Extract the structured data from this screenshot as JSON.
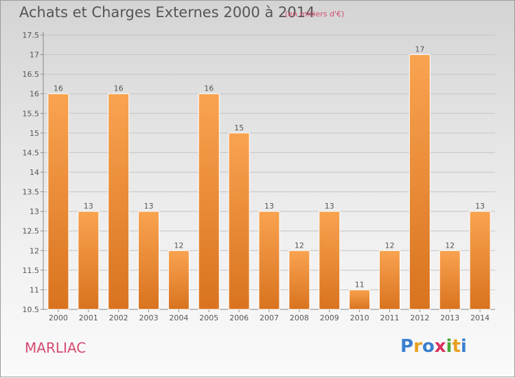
{
  "title": "Achats et Charges Externes 2000 à 2014",
  "subtitle": "(en milliers d'€)",
  "commune": "MARLIAC",
  "logo": {
    "text": "Proxiti",
    "letters": [
      "P",
      "r",
      "o",
      "x",
      "i",
      "t",
      "i"
    ],
    "colors": [
      "#3a7fd0",
      "#e8a020",
      "#3a7fd0",
      "#d8305a",
      "#4aa838",
      "#e8a020",
      "#3a7fd0"
    ]
  },
  "chart_data": {
    "type": "bar",
    "categories": [
      "2000",
      "2001",
      "2002",
      "2003",
      "2004",
      "2005",
      "2006",
      "2007",
      "2008",
      "2009",
      "2010",
      "2011",
      "2012",
      "2013",
      "2014"
    ],
    "values": [
      16,
      13,
      16,
      13,
      12,
      16,
      15,
      13,
      12,
      13,
      11,
      12,
      17,
      12,
      13
    ],
    "ylim": [
      10.5,
      17.5
    ],
    "yticks": [
      "10.5",
      "11",
      "11.5",
      "12",
      "12.5",
      "13",
      "13.5",
      "14",
      "14.5",
      "15",
      "15.5",
      "16",
      "16.5",
      "17",
      "17.5"
    ],
    "grid": true,
    "bar_color_top": "#f9a350",
    "bar_color_bottom": "#d9731f"
  }
}
